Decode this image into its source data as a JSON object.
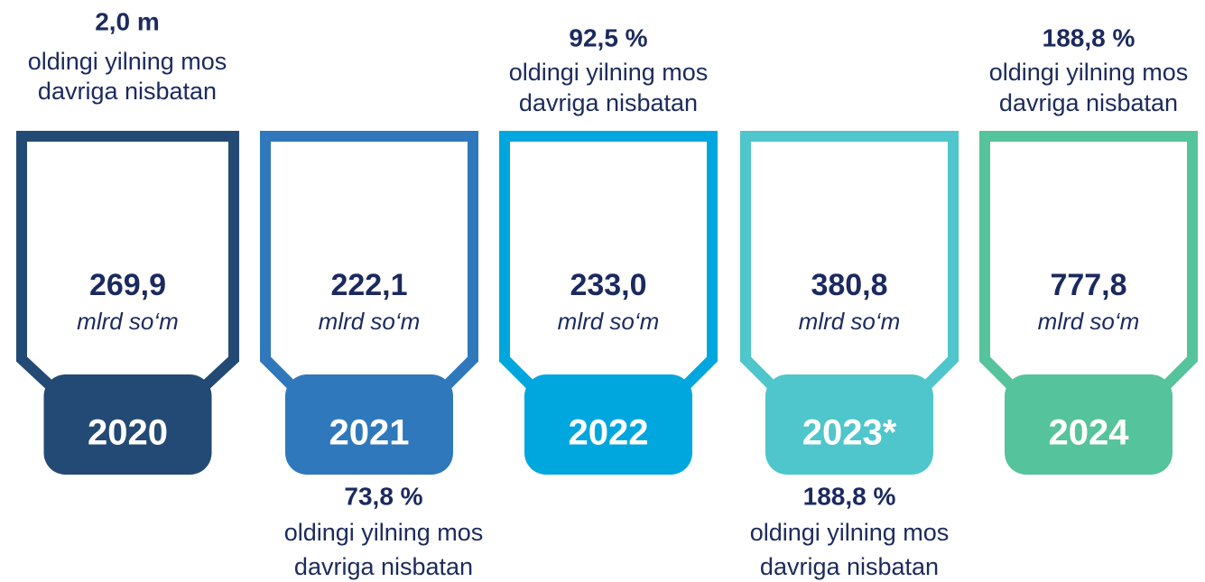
{
  "items": [
    {
      "year": "2020",
      "value": "269,9",
      "unit": "mlrd so‘m",
      "change": "2,0 m",
      "note": [
        "oldingi yilning mos",
        "davriga nisbatan"
      ]
    },
    {
      "year": "2021",
      "value": "222,1",
      "unit": "mlrd so‘m",
      "change": "73,8 %",
      "note": [
        "oldingi yilning mos",
        "davriga nisbatan"
      ]
    },
    {
      "year": "2022",
      "value": "233,0",
      "unit": "mlrd so‘m",
      "change": "92,5 %",
      "note": [
        "oldingi yilning mos",
        "davriga nisbatan"
      ]
    },
    {
      "year": "2023*",
      "value": "380,8",
      "unit": "mlrd so‘m",
      "change": "188,8 %",
      "note": [
        "oldingi yilning mos",
        "davriga nisbatan"
      ]
    },
    {
      "year": "2024",
      "value": "777,8",
      "unit": "mlrd so‘m",
      "change": "188,8 %",
      "note": [
        "oldingi yilning mos",
        "davriga nisbatan"
      ]
    }
  ]
}
